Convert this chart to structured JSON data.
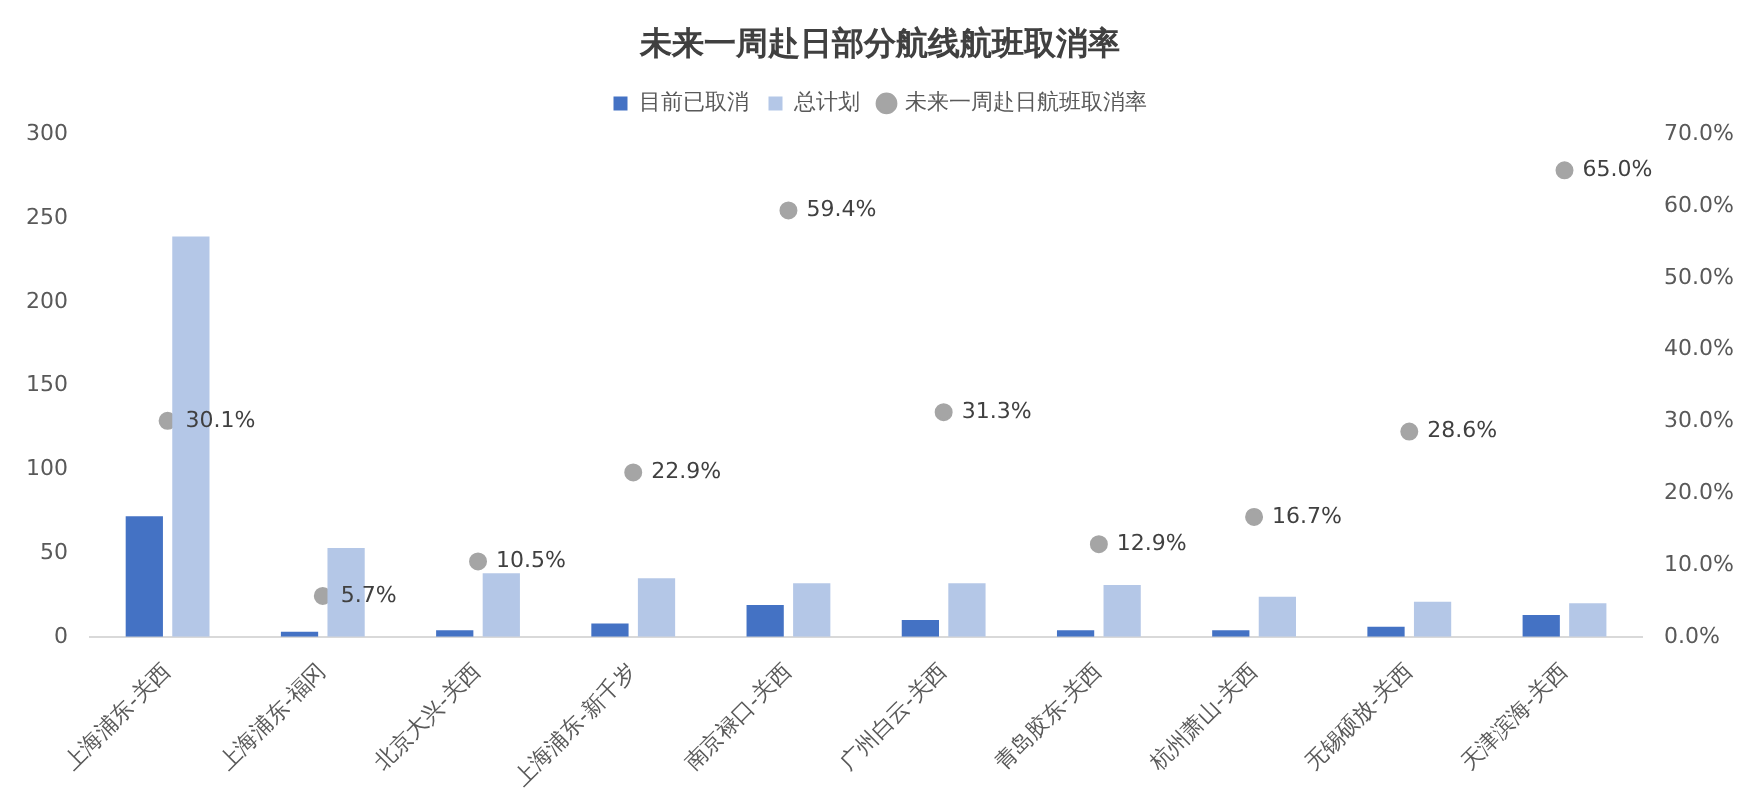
{
  "chart_data": {
    "type": "bar",
    "title": "未来一周赴日部分航线航班取消率",
    "categories": [
      "上海浦东-关西",
      "上海浦东-福冈",
      "北京大兴-关西",
      "上海浦东-新千岁",
      "南京禄口-关西",
      "广州白云-关西",
      "青岛胶东-关西",
      "杭州萧山-关西",
      "无锡硕放-关西",
      "天津滨海-关西"
    ],
    "series": [
      {
        "name": "目前已取消",
        "color": "#4472c4",
        "values": [
          72,
          3,
          4,
          8,
          19,
          10,
          4,
          4,
          6,
          13
        ]
      },
      {
        "name": "总计划",
        "color": "#b4c7e7",
        "values": [
          239,
          53,
          38,
          35,
          32,
          32,
          31,
          24,
          21,
          20
        ]
      },
      {
        "name": "未来一周赴日航班取消率",
        "type": "scatter",
        "axis": "y2",
        "color": "#a5a5a5",
        "x": [
          "上海浦东-关西",
          "上海浦东-福冈",
          "北京大兴-关西",
          "上海浦东-新千岁",
          "南京禄口-关西",
          "广州白云-关西",
          "青岛胶东-关西",
          "杭州萧山-关西",
          "无锡硕放-关西",
          "天津滨海-关西"
        ],
        "values": [
          30.1,
          5.7,
          10.5,
          22.9,
          59.4,
          31.3,
          12.9,
          16.7,
          28.6,
          65.0
        ],
        "value_labels": [
          "30.1%",
          "5.7%",
          "10.5%",
          "22.9%",
          "59.4%",
          "31.3%",
          "12.9%",
          "16.7%",
          "28.6%",
          "65.0%"
        ]
      }
    ],
    "ylim": [
      0,
      300
    ],
    "yticks": [
      0,
      50,
      100,
      150,
      200,
      250,
      300
    ],
    "y2lim": [
      0,
      70
    ],
    "y2ticks": [
      {
        "value": 0,
        "label": "0.0%"
      },
      {
        "value": 10,
        "label": "10.0%"
      },
      {
        "value": 20,
        "label": "20.0%"
      },
      {
        "value": 30,
        "label": "30.0%"
      },
      {
        "value": 40,
        "label": "40.0%"
      },
      {
        "value": 50,
        "label": "50.0%"
      },
      {
        "value": 60,
        "label": "60.0%"
      },
      {
        "value": 70,
        "label": "70.0%"
      }
    ],
    "grid": false,
    "legend": "top",
    "marker": "circle"
  }
}
